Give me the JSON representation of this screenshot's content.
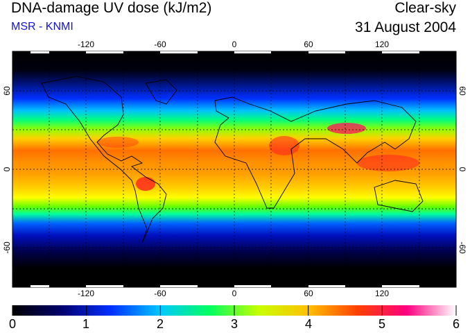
{
  "header": {
    "title": "DNA-damage UV dose (kJ/m2)",
    "subtitle": "MSR - KNMI",
    "sky": "Clear-sky",
    "date": "31 August 2004"
  },
  "axes": {
    "lon_ticks": [
      "-120",
      "-60",
      "0",
      "60",
      "120"
    ],
    "lat_left": [
      "60",
      "0",
      "-60"
    ],
    "lat_right": [
      "60",
      "0",
      "-60"
    ]
  },
  "colorbar": {
    "min": 0,
    "max": 6,
    "labels": [
      "0",
      "1",
      "2",
      "3",
      "4",
      "5",
      "6"
    ],
    "stops": [
      "#000000",
      "#00006e",
      "#0030ff",
      "#00c8ff",
      "#00ff60",
      "#c8ff00",
      "#ffc000",
      "#ff4000",
      "#ff0080",
      "#ffffff"
    ]
  },
  "colors": {
    "polar": "#000000",
    "high_lat": "#0018c8",
    "mid": "#00ff80",
    "subtropic": "#ffff00",
    "tropic": "#ff8000",
    "peak": "#ff1040"
  }
}
